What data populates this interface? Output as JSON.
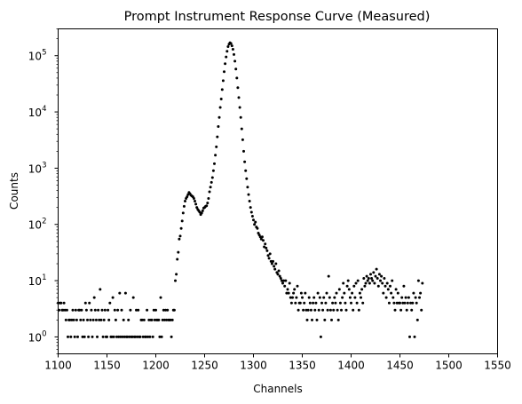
{
  "chart_data": {
    "type": "scatter",
    "title": "Prompt Instrument Response Curve (Measured)",
    "xlabel": "Channels",
    "ylabel": "Counts",
    "xlim": [
      1100,
      1550
    ],
    "ylim": [
      0.5,
      300000
    ],
    "yscale": "log",
    "grid": false,
    "marker_color": "#000000",
    "x_ticks": [
      1100,
      1150,
      1200,
      1250,
      1300,
      1350,
      1400,
      1450,
      1500,
      1550
    ],
    "y_ticks": [
      {
        "value": 1,
        "base": "10",
        "exp": "0"
      },
      {
        "value": 10,
        "base": "10",
        "exp": "1"
      },
      {
        "value": 100,
        "base": "10",
        "exp": "2"
      },
      {
        "value": 1000,
        "base": "10",
        "exp": "3"
      },
      {
        "value": 10000,
        "base": "10",
        "exp": "4"
      },
      {
        "value": 100000,
        "base": "10",
        "exp": "5"
      }
    ],
    "series_x_start": 1100,
    "series_x_step": 1,
    "series_y": [
      4,
      3,
      4,
      4,
      3,
      3,
      4,
      3,
      2,
      3,
      1,
      2,
      2,
      1,
      2,
      3,
      2,
      1,
      3,
      2,
      1,
      3,
      3,
      2,
      3,
      1,
      2,
      1,
      4,
      3,
      2,
      1,
      4,
      2,
      3,
      1,
      2,
      5,
      3,
      2,
      1,
      3,
      2,
      7,
      2,
      3,
      1,
      2,
      3,
      1,
      1,
      3,
      2,
      4,
      1,
      1,
      5,
      1,
      3,
      2,
      1,
      3,
      1,
      6,
      1,
      3,
      1,
      2,
      1,
      6,
      1,
      1,
      2,
      1,
      3,
      1,
      1,
      5,
      1,
      1,
      3,
      1,
      3,
      1,
      1,
      2,
      2,
      1,
      2,
      1,
      1,
      3,
      1,
      2,
      1,
      2,
      2,
      1,
      3,
      2,
      3,
      2,
      2,
      2,
      1,
      5,
      1,
      2,
      3,
      2,
      3,
      2,
      3,
      2,
      2,
      2,
      1,
      2,
      3,
      3,
      10,
      13,
      24,
      32,
      55,
      62,
      85,
      115,
      160,
      210,
      260,
      290,
      310,
      340,
      370,
      350,
      330,
      320,
      310,
      290,
      260,
      230,
      200,
      185,
      175,
      165,
      150,
      160,
      175,
      195,
      200,
      210,
      215,
      240,
      290,
      380,
      460,
      560,
      680,
      900,
      1200,
      1700,
      2400,
      3600,
      5500,
      8000,
      12000,
      17000,
      25000,
      36000,
      52000,
      72000,
      95000,
      120000,
      145000,
      160000,
      170000,
      165000,
      150000,
      130000,
      105000,
      80000,
      58000,
      40000,
      27000,
      18000,
      12000,
      8000,
      5000,
      3200,
      2000,
      1300,
      900,
      650,
      460,
      340,
      260,
      200,
      165,
      140,
      120,
      100,
      110,
      90,
      85,
      70,
      65,
      60,
      55,
      60,
      52,
      40,
      45,
      38,
      34,
      28,
      25,
      30,
      22,
      20,
      22,
      18,
      16,
      20,
      14,
      13,
      15,
      12,
      11,
      10,
      9,
      10,
      8,
      10,
      6,
      7,
      6,
      9,
      5,
      4,
      5,
      6,
      7,
      4,
      5,
      8,
      3,
      4,
      4,
      6,
      5,
      3,
      4,
      6,
      3,
      2,
      3,
      5,
      4,
      3,
      2,
      4,
      5,
      3,
      4,
      2,
      6,
      3,
      5,
      1,
      4,
      3,
      5,
      2,
      4,
      6,
      3,
      12,
      5,
      3,
      2,
      4,
      3,
      5,
      4,
      6,
      3,
      2,
      7,
      4,
      3,
      5,
      9,
      6,
      4,
      3,
      8,
      10,
      7,
      5,
      4,
      6,
      3,
      8,
      5,
      9,
      4,
      10,
      3,
      6,
      5,
      7,
      4,
      11,
      8,
      9,
      12,
      10,
      11,
      9,
      13,
      11,
      10,
      14,
      9,
      12,
      16,
      11,
      8,
      13,
      10,
      12,
      9,
      6,
      11,
      8,
      5,
      9,
      7,
      4,
      8,
      6,
      10,
      5,
      4,
      3,
      7,
      4,
      6,
      4,
      4,
      3,
      5,
      4,
      8,
      4,
      5,
      3,
      4,
      5,
      1,
      4,
      3,
      4,
      6,
      1,
      5,
      4,
      2,
      10,
      5,
      6,
      3,
      9
    ]
  }
}
